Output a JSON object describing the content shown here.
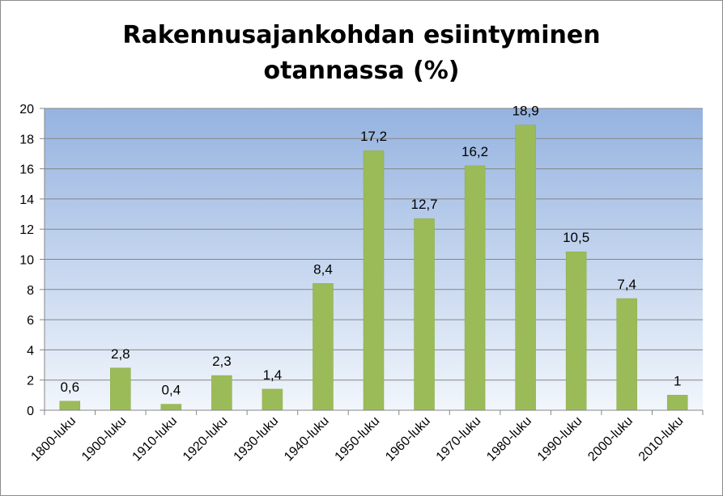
{
  "chart_data": {
    "type": "bar",
    "title_lines": [
      "Rakennusajankohdan esiintyminen",
      "otannassa (%)"
    ],
    "categories": [
      "1800-luku",
      "1900-luku",
      "1910-luku",
      "1920-luku",
      "1930-luku",
      "1940-luku",
      "1950-luku",
      "1960-luku",
      "1970-luku",
      "1980-luku",
      "1990-luku",
      "2000-luku",
      "2010-luku"
    ],
    "values": [
      0.6,
      2.8,
      0.4,
      2.3,
      1.4,
      8.4,
      17.2,
      12.7,
      16.2,
      18.9,
      10.5,
      7.4,
      1
    ],
    "data_labels": [
      "0,6",
      "2,8",
      "0,4",
      "2,3",
      "1,4",
      "8,4",
      "17,2",
      "12,7",
      "16,2",
      "18,9",
      "10,5",
      "7,4",
      "1"
    ],
    "y_ticks": [
      "0",
      "2",
      "4",
      "6",
      "8",
      "10",
      "12",
      "14",
      "16",
      "18",
      "20"
    ],
    "ylim": [
      0,
      20
    ],
    "grid": true,
    "legend": "none",
    "colors": {
      "bar": "#9bbb59",
      "bar_border": "#8aac48",
      "plot_top": "#95b3e0",
      "plot_bottom": "#f2f6fc",
      "grid": "#868686",
      "axis": "#868686"
    }
  }
}
